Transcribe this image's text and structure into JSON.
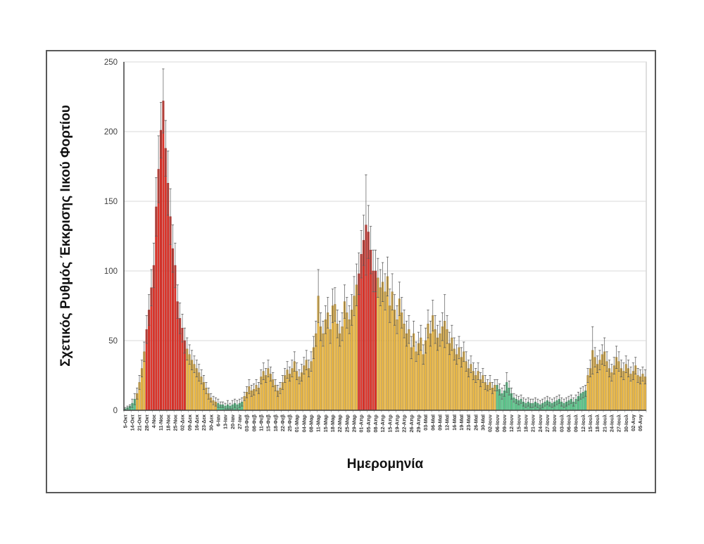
{
  "figure": {
    "background": "#FFFFFF",
    "outer_border_color": "#595959",
    "plot_border_color": "#BFBFBF",
    "axis_line_color": "#404040",
    "gridline_color": "#D9D9D9"
  },
  "chart_data": {
    "type": "bar",
    "title": "",
    "xlabel": "Ημερομηνία",
    "ylabel": "Σχετικός Ρυθμός Έκκρισης Ιικού Φορτίου",
    "ylim": [
      0,
      250
    ],
    "y_ticks": [
      0,
      50,
      100,
      150,
      200,
      250
    ],
    "grid": "horizontal",
    "legend": "none",
    "bars_per_label": 3,
    "x_tick_labels": [
      "5-Οκτ",
      "14-Οκτ",
      "21-Οκτ",
      "28-Οκτ",
      "4-Νοε",
      "11-Νοε",
      "18-Νοε",
      "25-Νοε",
      "02-Δεκ",
      "09-Δεκ",
      "16-Δεκ",
      "23-Δεκ",
      "30-Δεκ",
      "6-Ιαν",
      "13-Ιαν",
      "20-Ιαν",
      "27-Ιαν",
      "03-Φεβ",
      "08-Φεβ",
      "11-Φεβ",
      "15-Φεβ",
      "18-Φεβ",
      "22-Φεβ",
      "25-Φεβ",
      "01-Μαρ",
      "04-Μαρ",
      "08-Μαρ",
      "11-Μαρ",
      "15-Μαρ",
      "18-Μαρ",
      "22-Μαρ",
      "25-Μαρ",
      "29-Μαρ",
      "01-Απρ",
      "05-Απρ",
      "08-Απρ",
      "12-Απρ",
      "15-Απρ",
      "19-Απρ",
      "22-Απρ",
      "26-Απρ",
      "29-Απρ",
      "03-Μαϊ",
      "06-Μαϊ",
      "09-Μαϊ",
      "12-Μαϊ",
      "16-Μαϊ",
      "19-Μαϊ",
      "23-Μαϊ",
      "26-Μαϊ",
      "30-Μαϊ",
      "02-Ιουν",
      "06-Ιουν",
      "09-Ιουν",
      "12-Ιουν",
      "15-Ιουν",
      "18-Ιουν",
      "21-Ιουν",
      "24-Ιουν",
      "27-Ιουν",
      "30-Ιουν",
      "03-Ιουλ",
      "06-Ιουλ",
      "09-Ιουλ",
      "12-Ιουλ",
      "15-Ιουλ",
      "18-Ιουλ",
      "21-Ιουλ",
      "24-Ιουλ",
      "27-Ιουλ",
      "30-Ιουλ",
      "02-Αυγ",
      "05-Αυγ"
    ],
    "colors": {
      "r": "#E2352B",
      "r_edge": "#A6201A",
      "y": "#F2BF4B",
      "y_edge": "#A87D1F",
      "g": "#5FCB8F",
      "g_edge": "#2F8F5B",
      "error": "#595959"
    },
    "color_segments": [
      [
        "g",
        5
      ],
      [
        "y",
        4
      ],
      [
        "r",
        17
      ],
      [
        "y",
        13
      ],
      [
        "g",
        11
      ],
      [
        "y",
        48
      ],
      [
        "r",
        8
      ],
      [
        "y",
        50
      ],
      [
        "g",
        38
      ],
      [
        "y",
        25
      ]
    ],
    "values": [
      1,
      2,
      3,
      5,
      8,
      12,
      20,
      30,
      42,
      58,
      72,
      88,
      104,
      146,
      173,
      201,
      222,
      188,
      163,
      139,
      116,
      104,
      78,
      66,
      59,
      50,
      44,
      40,
      36,
      33,
      30,
      27,
      24,
      20,
      16,
      12,
      9,
      7,
      6,
      5,
      4,
      4,
      3,
      4,
      3,
      4,
      5,
      4,
      5,
      6,
      10,
      13,
      17,
      14,
      15,
      18,
      16,
      24,
      28,
      25,
      30,
      26,
      22,
      18,
      14,
      16,
      20,
      25,
      29,
      26,
      30,
      35,
      28,
      24,
      27,
      32,
      36,
      30,
      35,
      45,
      55,
      82,
      60,
      55,
      65,
      70,
      58,
      75,
      76,
      62,
      55,
      60,
      78,
      70,
      65,
      72,
      82,
      90,
      98,
      112,
      122,
      133,
      128,
      115,
      100,
      100,
      95,
      88,
      92,
      85,
      96,
      75,
      85,
      72,
      65,
      80,
      70,
      62,
      55,
      58,
      45,
      55,
      42,
      48,
      52,
      40,
      50,
      62,
      55,
      68,
      58,
      52,
      55,
      60,
      64,
      58,
      48,
      52,
      44,
      40,
      45,
      38,
      42,
      35,
      30,
      33,
      28,
      25,
      28,
      22,
      25,
      20,
      18,
      20,
      16,
      18,
      18,
      15,
      12,
      14,
      20,
      16,
      12,
      9,
      8,
      7,
      8,
      6,
      5,
      6,
      5,
      5,
      6,
      5,
      4,
      5,
      6,
      7,
      6,
      5,
      6,
      7,
      8,
      6,
      5,
      6,
      7,
      8,
      6,
      8,
      10,
      12,
      13,
      14,
      25,
      30,
      43,
      38,
      33,
      36,
      40,
      42,
      35,
      30,
      27,
      32,
      38,
      35,
      30,
      28,
      33,
      30,
      26,
      28,
      32,
      25,
      24,
      26,
      24
    ],
    "errors": [
      1,
      1,
      1,
      3,
      4,
      4,
      5,
      6,
      7,
      10,
      11,
      13,
      16,
      21,
      24,
      20,
      23,
      20,
      23,
      20,
      17,
      16,
      12,
      11,
      10,
      9,
      8,
      7,
      7,
      6,
      6,
      6,
      5,
      5,
      4,
      4,
      3,
      3,
      3,
      3,
      2,
      2,
      2,
      3,
      2,
      3,
      3,
      3,
      3,
      3,
      3,
      4,
      5,
      4,
      4,
      4,
      4,
      5,
      6,
      5,
      6,
      5,
      5,
      4,
      4,
      4,
      5,
      5,
      6,
      5,
      6,
      7,
      6,
      5,
      6,
      6,
      7,
      6,
      7,
      8,
      9,
      19,
      10,
      9,
      10,
      11,
      10,
      12,
      12,
      10,
      9,
      10,
      12,
      11,
      10,
      11,
      14,
      15,
      15,
      17,
      18,
      36,
      19,
      17,
      15,
      15,
      14,
      13,
      14,
      13,
      14,
      12,
      13,
      11,
      10,
      12,
      11,
      10,
      9,
      10,
      8,
      9,
      7,
      8,
      9,
      7,
      9,
      10,
      9,
      11,
      10,
      9,
      9,
      10,
      19,
      10,
      8,
      9,
      8,
      7,
      8,
      7,
      7,
      7,
      6,
      6,
      6,
      5,
      6,
      5,
      5,
      5,
      4,
      5,
      4,
      4,
      4,
      4,
      4,
      4,
      7,
      5,
      4,
      3,
      3,
      3,
      3,
      3,
      3,
      3,
      3,
      3,
      3,
      3,
      3,
      3,
      3,
      3,
      3,
      3,
      3,
      3,
      3,
      3,
      3,
      3,
      3,
      3,
      3,
      3,
      3,
      4,
      4,
      4,
      5,
      6,
      17,
      7,
      6,
      7,
      7,
      10,
      7,
      6,
      6,
      6,
      8,
      7,
      6,
      6,
      6,
      6,
      5,
      6,
      6,
      5,
      5,
      5,
      5
    ]
  }
}
